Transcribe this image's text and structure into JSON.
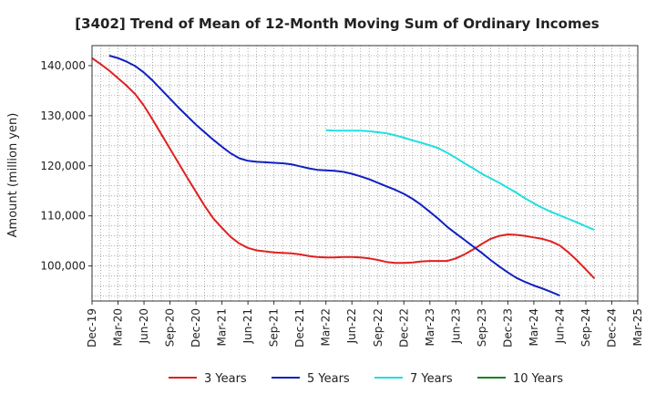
{
  "chart_data": {
    "type": "line",
    "title": "[3402]  Trend of Mean of 12-Month Moving Sum of Ordinary Incomes",
    "xlabel": "",
    "ylabel": "Amount (million yen)",
    "ylim": [
      93000,
      144000
    ],
    "yticks": [
      100000,
      110000,
      120000,
      130000,
      140000
    ],
    "ytick_labels": [
      "100,000",
      "110,000",
      "120,000",
      "130,000",
      "140,000"
    ],
    "x_start_month_index": 0,
    "x_end_month_index": 63,
    "xtick_labels": [
      "Dec-19",
      "Mar-20",
      "Jun-20",
      "Sep-20",
      "Dec-20",
      "Mar-21",
      "Jun-21",
      "Sep-21",
      "Dec-21",
      "Mar-22",
      "Jun-22",
      "Sep-22",
      "Dec-22",
      "Mar-23",
      "Jun-23",
      "Sep-23",
      "Dec-23",
      "Mar-24",
      "Jun-24",
      "Sep-24",
      "Dec-24",
      "Mar-25"
    ],
    "grid": true,
    "series": [
      {
        "name": "3 Years",
        "color": "#e02020",
        "start_month_index": 0,
        "values": [
          141500,
          140300,
          139000,
          137500,
          136000,
          134300,
          132000,
          129200,
          126300,
          123400,
          120500,
          117600,
          114800,
          112000,
          109500,
          107600,
          105800,
          104500,
          103600,
          103100,
          102900,
          102700,
          102600,
          102500,
          102300,
          102000,
          101800,
          101700,
          101700,
          101800,
          101800,
          101700,
          101500,
          101200,
          100800,
          100600,
          100600,
          100700,
          100900,
          101000,
          101000,
          101000,
          101500,
          102300,
          103300,
          104400,
          105400,
          106000,
          106300,
          106200,
          106000,
          105700,
          105400,
          104900,
          104100,
          102700,
          101100,
          99300,
          97500
        ]
      },
      {
        "name": "5 Years",
        "color": "#1020c0",
        "start_month_index": 2,
        "values": [
          142000,
          141500,
          140800,
          139900,
          138600,
          137000,
          135200,
          133400,
          131600,
          129900,
          128200,
          126700,
          125200,
          123800,
          122500,
          121500,
          121000,
          120800,
          120700,
          120600,
          120500,
          120300,
          119900,
          119500,
          119200,
          119100,
          119000,
          118800,
          118400,
          117900,
          117300,
          116600,
          115900,
          115200,
          114400,
          113400,
          112200,
          110800,
          109400,
          107800,
          106500,
          105200,
          103900,
          102600,
          101200,
          99900,
          98700,
          97600,
          96800,
          96100,
          95500,
          94800,
          94100
        ]
      },
      {
        "name": "7 Years",
        "color": "#20e0e0",
        "start_month_index": 27,
        "values": [
          127100,
          127000,
          127000,
          127000,
          127000,
          126900,
          126700,
          126500,
          126100,
          125600,
          125100,
          124600,
          124100,
          123500,
          122600,
          121600,
          120500,
          119500,
          118400,
          117500,
          116600,
          115600,
          114600,
          113500,
          112500,
          111600,
          110800,
          110100,
          109400,
          108700,
          107900,
          107200
        ]
      },
      {
        "name": "10 Years",
        "color": "#208020",
        "start_month_index": 0,
        "values": []
      }
    ]
  }
}
